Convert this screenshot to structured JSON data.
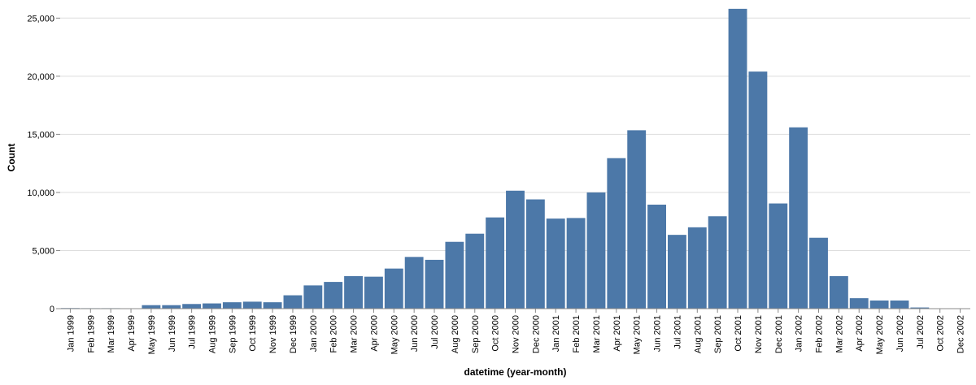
{
  "chart_data": {
    "type": "bar",
    "xlabel": "datetime (year-month)",
    "ylabel": "Count",
    "ylim": [
      0,
      26000
    ],
    "yticks": [
      0,
      5000,
      10000,
      15000,
      20000,
      25000
    ],
    "ytick_labels": [
      "0",
      "5,000",
      "10,000",
      "15,000",
      "20,000",
      "25,000"
    ],
    "grid": true,
    "bar_color": "#4c78a8",
    "categories": [
      "Jan 1999",
      "Feb 1999",
      "Mar 1999",
      "Apr 1999",
      "May 1999",
      "Jun 1999",
      "Jul 1999",
      "Aug 1999",
      "Sep 1999",
      "Oct 1999",
      "Nov 1999",
      "Dec 1999",
      "Jan 2000",
      "Feb 2000",
      "Mar 2000",
      "Apr 2000",
      "May 2000",
      "Jun 2000",
      "Jul 2000",
      "Aug 2000",
      "Sep 2000",
      "Oct 2000",
      "Nov 2000",
      "Dec 2000",
      "Jan 2001",
      "Feb 2001",
      "Mar 2001",
      "Apr 2001",
      "May 2001",
      "Jun 2001",
      "Jul 2001",
      "Aug 2001",
      "Sep 2001",
      "Oct 2001",
      "Nov 2001",
      "Dec 2001",
      "Jan 2002",
      "Feb 2002",
      "Mar 2002",
      "Apr 2002",
      "May 2002",
      "Jun 2002",
      "Jul 2002",
      "Oct 2002",
      "Dec 2002"
    ],
    "values": [
      50,
      40,
      40,
      30,
      300,
      300,
      400,
      450,
      550,
      600,
      550,
      1150,
      2000,
      2300,
      2800,
      2750,
      3450,
      4450,
      4200,
      5750,
      6450,
      7850,
      10150,
      9400,
      7750,
      7800,
      10000,
      12950,
      15350,
      8950,
      6350,
      7000,
      7950,
      25800,
      20400,
      9050,
      15600,
      6100,
      2800,
      900,
      700,
      700,
      100,
      20,
      10
    ]
  }
}
